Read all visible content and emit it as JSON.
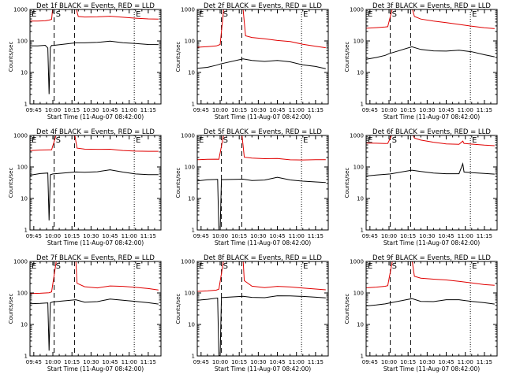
{
  "chart_data": {
    "type": "line",
    "layout": "3x3 grid",
    "xlabel": "Start Time (11-Aug-07 08:42:00)",
    "ylabel": "Counts/sec",
    "x_tick_labels": [
      "09:45",
      "10:00",
      "10:15",
      "10:30",
      "10:45",
      "11:00",
      "11:15"
    ],
    "x_tick_minutes": [
      585,
      600,
      615,
      630,
      645,
      660,
      675
    ],
    "xlim_minutes": [
      582,
      685
    ],
    "y_scale": "log",
    "ylim": [
      1,
      1000
    ],
    "y_tick_labels": [
      "1",
      "10",
      "100",
      "1000"
    ],
    "y_tick_values": [
      1,
      10,
      100,
      1000
    ],
    "series_colors": {
      "events": "#000000",
      "lld": "#e00000"
    },
    "markers": [
      {
        "label": "E",
        "minute": 582,
        "style": "dotted"
      },
      {
        "label": "S",
        "minute": 601,
        "style": "dashed"
      },
      {
        "label": "",
        "minute": 617,
        "style": "dashed"
      },
      {
        "label": "E",
        "minute": 664,
        "style": "dotted"
      }
    ],
    "panels": [
      {
        "title": "Det  1f BLACK = Events, RED = LLD",
        "events_x": [
          582,
          588,
          594,
          596,
          597,
          598,
          599,
          600,
          618,
          625,
          635,
          645,
          655,
          665,
          675,
          683
        ],
        "events_y": [
          70,
          72,
          75,
          60,
          2,
          60,
          72,
          74,
          90,
          88,
          88,
          95,
          87,
          85,
          80,
          78
        ],
        "lld_x": [
          582,
          588,
          594,
          597,
          599,
          600,
          603,
          618,
          620,
          625,
          635,
          645,
          655,
          665,
          675,
          683
        ],
        "lld_y": [
          430,
          440,
          450,
          460,
          470,
          1200,
          1200,
          1200,
          620,
          580,
          570,
          590,
          560,
          540,
          520,
          500
        ]
      },
      {
        "title": "Det  2f BLACK = Events, RED = LLD",
        "events_x": [
          582,
          590,
          597,
          600,
          618,
          625,
          635,
          645,
          655,
          665,
          675,
          683
        ],
        "events_y": [
          14,
          15,
          17,
          18,
          26,
          24,
          23,
          25,
          22,
          17,
          15,
          13
        ],
        "lld_x": [
          582,
          590,
          597,
          600,
          603,
          615,
          618,
          620,
          625,
          635,
          645,
          655,
          665,
          675,
          683
        ],
        "lld_y": [
          65,
          68,
          70,
          75,
          1200,
          1200,
          1100,
          150,
          130,
          115,
          100,
          95,
          80,
          70,
          62
        ]
      },
      {
        "title": "Det  3f BLACK = Events, RED = LLD",
        "events_x": [
          582,
          590,
          597,
          600,
          618,
          625,
          635,
          645,
          655,
          665,
          675,
          683
        ],
        "events_y": [
          27,
          30,
          34,
          38,
          65,
          55,
          50,
          48,
          50,
          44,
          36,
          32
        ],
        "lld_x": [
          582,
          590,
          597,
          599,
          603,
          618,
          620,
          625,
          635,
          645,
          655,
          665,
          675,
          683
        ],
        "lld_y": [
          260,
          265,
          270,
          275,
          1200,
          1200,
          620,
          500,
          420,
          370,
          330,
          300,
          270,
          250
        ]
      },
      {
        "title": "Det  4f BLACK = Events, RED = LLD",
        "events_x": [
          582,
          590,
          596,
          597,
          598,
          600,
          618,
          625,
          635,
          645,
          655,
          665,
          675,
          683
        ],
        "events_y": [
          55,
          60,
          62,
          2,
          58,
          62,
          70,
          66,
          68,
          80,
          70,
          62,
          58,
          56
        ],
        "lld_x": [
          582,
          590,
          597,
          599,
          603,
          617,
          619,
          625,
          635,
          645,
          655,
          665,
          675,
          683
        ],
        "lld_y": [
          330,
          335,
          340,
          345,
          1200,
          1200,
          400,
          360,
          350,
          360,
          340,
          330,
          320,
          310
        ]
      },
      {
        "title": "Det  5f BLACK = Events, RED = LLD",
        "events_x": [
          582,
          590,
          598,
          599,
          600,
          601,
          618,
          625,
          635,
          645,
          655,
          665,
          675,
          683
        ],
        "events_y": [
          35,
          38,
          40,
          1,
          1,
          40,
          40,
          36,
          38,
          48,
          40,
          36,
          33,
          31
        ],
        "lld_x": [
          582,
          590,
          597,
          599,
          603,
          617,
          619,
          625,
          635,
          645,
          655,
          665,
          675,
          683
        ],
        "lld_y": [
          165,
          170,
          175,
          180,
          1200,
          1200,
          200,
          185,
          180,
          190,
          175,
          170,
          168,
          165
        ]
      },
      {
        "title": "Det  6f BLACK = Events, RED = LLD",
        "events_x": [
          582,
          590,
          598,
          601,
          618,
          625,
          635,
          645,
          655,
          658,
          659,
          665,
          675,
          683
        ],
        "events_y": [
          50,
          55,
          60,
          62,
          80,
          70,
          62,
          60,
          62,
          130,
          70,
          65,
          60,
          58
        ],
        "lld_x": [
          582,
          590,
          597,
          599,
          603,
          618,
          620,
          625,
          635,
          645,
          655,
          658,
          659,
          665,
          675,
          683
        ],
        "lld_y": [
          550,
          560,
          570,
          580,
          1200,
          1200,
          800,
          700,
          620,
          560,
          530,
          650,
          540,
          520,
          500,
          490
        ]
      },
      {
        "title": "Det  7f BLACK = Events, RED = LLD",
        "events_x": [
          582,
          590,
          596,
          597,
          598,
          600,
          618,
          625,
          635,
          645,
          655,
          665,
          675,
          683
        ],
        "events_y": [
          45,
          48,
          50,
          1.5,
          48,
          50,
          60,
          52,
          55,
          65,
          58,
          52,
          48,
          45
        ],
        "lld_x": [
          582,
          590,
          597,
          599,
          603,
          618,
          619,
          625,
          635,
          645,
          655,
          665,
          675,
          683
        ],
        "lld_y": [
          95,
          100,
          105,
          110,
          1200,
          1200,
          200,
          160,
          150,
          170,
          160,
          145,
          135,
          125
        ]
      },
      {
        "title": "Det  8f BLACK = Events, RED = LLD",
        "events_x": [
          582,
          590,
          598,
          599,
          600,
          601,
          618,
          625,
          635,
          645,
          655,
          665,
          675,
          683
        ],
        "events_y": [
          60,
          65,
          70,
          1,
          1,
          70,
          80,
          75,
          72,
          80,
          78,
          76,
          74,
          72
        ],
        "lld_x": [
          582,
          590,
          597,
          599,
          603,
          618,
          619,
          625,
          635,
          645,
          655,
          665,
          675,
          683
        ],
        "lld_y": [
          115,
          120,
          125,
          130,
          1200,
          1200,
          250,
          170,
          150,
          160,
          150,
          140,
          135,
          130
        ]
      },
      {
        "title": "Det  9f BLACK = Events, RED = LLD",
        "events_x": [
          582,
          590,
          597,
          600,
          618,
          625,
          635,
          645,
          655,
          665,
          675,
          683
        ],
        "events_y": [
          40,
          42,
          44,
          46,
          65,
          55,
          55,
          62,
          60,
          52,
          48,
          45
        ],
        "lld_x": [
          582,
          590,
          597,
          599,
          603,
          618,
          620,
          625,
          635,
          645,
          655,
          665,
          675,
          683
        ],
        "lld_y": [
          150,
          155,
          160,
          165,
          1200,
          1200,
          350,
          300,
          270,
          250,
          230,
          210,
          190,
          180
        ]
      }
    ]
  }
}
